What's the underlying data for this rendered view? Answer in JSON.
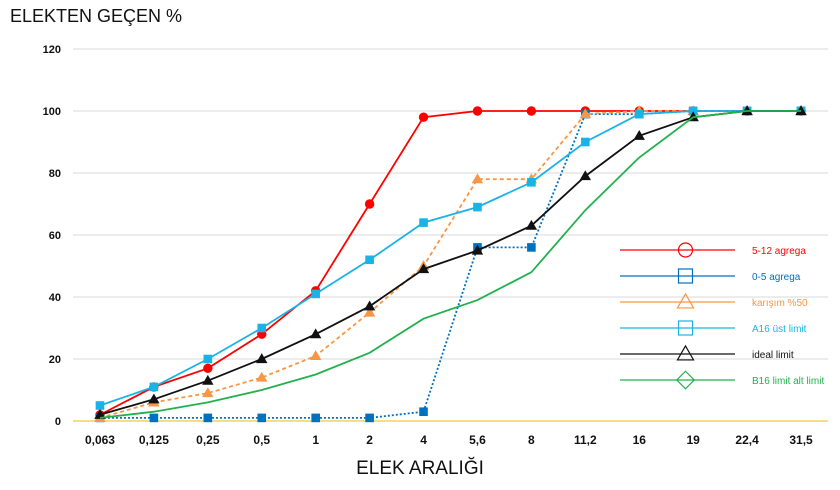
{
  "chart_data": {
    "type": "line",
    "title": "ELEKTEN GEÇEN %",
    "xlabel": "ELEK ARALIĞI",
    "ylabel": "",
    "categories": [
      "0,063",
      "0,125",
      "0,25",
      "0,5",
      "1",
      "2",
      "4",
      "5,6",
      "8",
      "11,2",
      "16",
      "19",
      "22,4",
      "31,5"
    ],
    "ylim": [
      0,
      120
    ],
    "yticks": [
      0,
      20,
      40,
      60,
      80,
      100,
      120
    ],
    "grid": true,
    "legend_position": "right",
    "series": [
      {
        "name": "5-12 agrega",
        "color": "#ff0000",
        "marker": "circle",
        "dash": false,
        "values": [
          2,
          11,
          17,
          28,
          42,
          70,
          98,
          100,
          100,
          100,
          100,
          100,
          100,
          100
        ]
      },
      {
        "name": "0-5 agrega",
        "color": "#0070c0",
        "marker": "square",
        "dash": true,
        "values": [
          1,
          1,
          1,
          1,
          1,
          1,
          3,
          56,
          56,
          99,
          99,
          100,
          100,
          100
        ]
      },
      {
        "name": "karışım %50",
        "color": "#f79646",
        "marker": "triangle",
        "dash": true,
        "values": [
          1,
          6,
          9,
          14,
          21,
          35,
          50,
          78,
          78,
          99,
          100,
          100,
          100,
          100
        ]
      },
      {
        "name": "A16 üst limit",
        "color": "#19b3e6",
        "marker": "square",
        "dash": false,
        "values": [
          5,
          11,
          20,
          30,
          41,
          52,
          64,
          69,
          77,
          90,
          99,
          100,
          100,
          100
        ]
      },
      {
        "name": "ideal limit",
        "color": "#111111",
        "marker": "triangle",
        "dash": false,
        "values": [
          2,
          7,
          13,
          20,
          28,
          37,
          49,
          55,
          63,
          79,
          92,
          98,
          100,
          100
        ]
      },
      {
        "name": "B16 limit alt limit",
        "color": "#22b14c",
        "marker": "diamond",
        "dash": false,
        "values": [
          1,
          3,
          6,
          10,
          15,
          22,
          33,
          39,
          48,
          68,
          85,
          98,
          100,
          100
        ]
      }
    ]
  }
}
